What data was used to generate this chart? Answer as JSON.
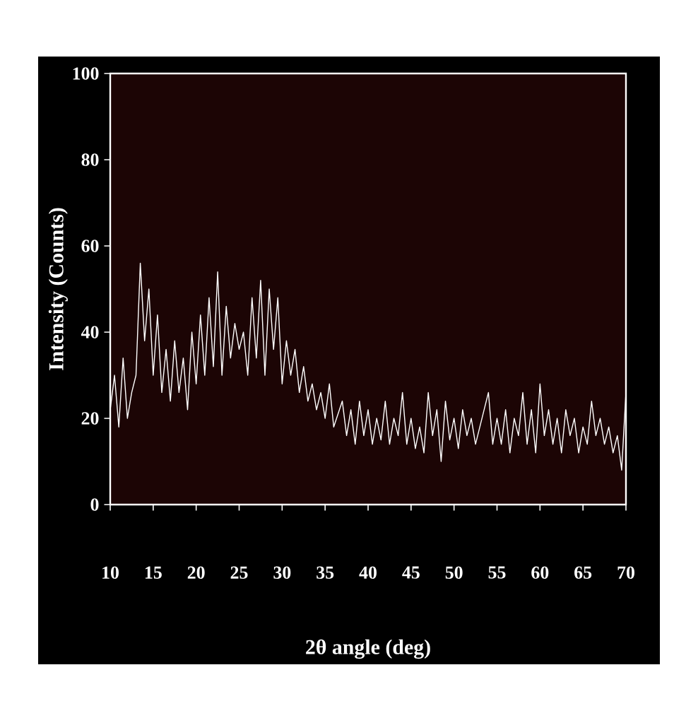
{
  "chart_data": {
    "type": "line",
    "xlabel": "2θ angle (deg)",
    "ylabel": "Intensity (Counts)",
    "xlim": [
      10,
      70
    ],
    "ylim": [
      0,
      100
    ],
    "xticks": [
      10,
      15,
      20,
      25,
      30,
      35,
      40,
      45,
      50,
      55,
      60,
      65,
      70
    ],
    "yticks": [
      0,
      20,
      40,
      60,
      80,
      100
    ],
    "color": "#ffffff",
    "x": [
      10,
      10.5,
      11,
      11.5,
      12,
      12.5,
      13,
      13.5,
      14,
      14.5,
      15,
      15.5,
      16,
      16.5,
      17,
      17.5,
      18,
      18.5,
      19,
      19.5,
      20,
      20.5,
      21,
      21.5,
      22,
      22.5,
      23,
      23.5,
      24,
      24.5,
      25,
      25.5,
      26,
      26.5,
      27,
      27.5,
      28,
      28.5,
      29,
      29.5,
      30,
      30.5,
      31,
      31.5,
      32,
      32.5,
      33,
      33.5,
      34,
      34.5,
      35,
      35.5,
      36,
      37,
      37.5,
      38,
      38.5,
      39,
      39.5,
      40,
      40.5,
      41,
      41.5,
      42,
      42.5,
      43,
      43.5,
      44,
      44.5,
      45,
      45.5,
      46,
      46.5,
      47,
      47.5,
      48,
      48.5,
      49,
      49.5,
      50,
      50.5,
      51,
      51.5,
      52,
      52.5,
      53,
      54,
      54.5,
      55,
      55.5,
      56,
      56.5,
      57,
      57.5,
      58,
      58.5,
      59,
      59.5,
      60,
      60.5,
      61,
      61.5,
      62,
      62.5,
      63,
      63.5,
      64,
      64.5,
      65,
      65.5,
      66,
      66.5,
      67,
      67.5,
      68,
      68.5,
      69,
      69.5,
      70
    ],
    "values": [
      22,
      30,
      18,
      34,
      20,
      26,
      30,
      56,
      38,
      50,
      30,
      44,
      26,
      36,
      24,
      38,
      26,
      34,
      22,
      40,
      28,
      44,
      30,
      48,
      32,
      54,
      30,
      46,
      34,
      42,
      36,
      40,
      30,
      48,
      34,
      52,
      30,
      50,
      36,
      48,
      28,
      38,
      30,
      36,
      26,
      32,
      24,
      28,
      22,
      26,
      20,
      28,
      18,
      24,
      16,
      22,
      14,
      24,
      16,
      22,
      14,
      20,
      15,
      24,
      14,
      20,
      16,
      26,
      14,
      20,
      13,
      18,
      12,
      26,
      16,
      22,
      10,
      24,
      15,
      20,
      13,
      22,
      16,
      20,
      14,
      18,
      26,
      14,
      20,
      14,
      22,
      12,
      20,
      16,
      26,
      14,
      22,
      12,
      28,
      16,
      22,
      14,
      20,
      12,
      22,
      16,
      20,
      12,
      18,
      14,
      24,
      16,
      20,
      14,
      18,
      12,
      16,
      8,
      26
    ]
  }
}
